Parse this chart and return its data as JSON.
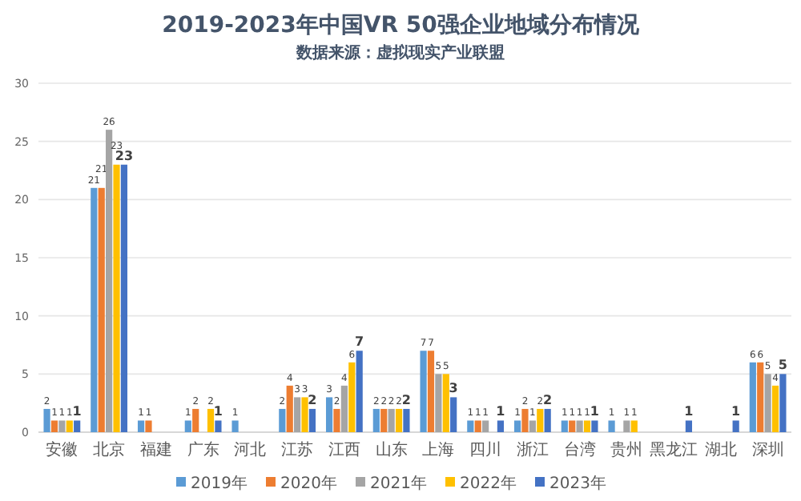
{
  "chart_data": {
    "type": "bar",
    "title": "2019-2023年中国VR 50强企业地域分布情况",
    "subtitle": "数据来源：虚拟现实产业联盟",
    "categories": [
      "安徽",
      "北京",
      "福建",
      "广东",
      "河北",
      "江苏",
      "江西",
      "山东",
      "上海",
      "四川",
      "浙江",
      "台湾",
      "贵州",
      "黑龙江",
      "湖北",
      "深圳"
    ],
    "series": [
      {
        "name": "2019年",
        "color": "#5b9bd5",
        "values": [
          2,
          21,
          1,
          1,
          1,
          2,
          3,
          2,
          7,
          1,
          1,
          1,
          1,
          null,
          null,
          6
        ]
      },
      {
        "name": "2020年",
        "color": "#ed7d31",
        "values": [
          1,
          21,
          1,
          2,
          null,
          4,
          2,
          2,
          7,
          1,
          2,
          1,
          null,
          null,
          null,
          6
        ]
      },
      {
        "name": "2021年",
        "color": "#a5a5a5",
        "values": [
          1,
          26,
          null,
          null,
          null,
          3,
          4,
          2,
          5,
          1,
          1,
          1,
          1,
          null,
          null,
          5
        ]
      },
      {
        "name": "2022年",
        "color": "#ffc000",
        "values": [
          1,
          23,
          null,
          2,
          null,
          3,
          6,
          2,
          5,
          null,
          2,
          1,
          1,
          null,
          null,
          4
        ]
      },
      {
        "name": "2023年",
        "color": "#4472c4",
        "values": [
          1,
          23,
          null,
          1,
          null,
          2,
          7,
          2,
          3,
          1,
          2,
          1,
          null,
          1,
          1,
          5
        ]
      }
    ],
    "ylim": [
      0,
      30
    ],
    "yticks": [
      0,
      5,
      10,
      15,
      20,
      25,
      30
    ],
    "grid": "y",
    "legend": "bottom",
    "data_labels": true
  }
}
